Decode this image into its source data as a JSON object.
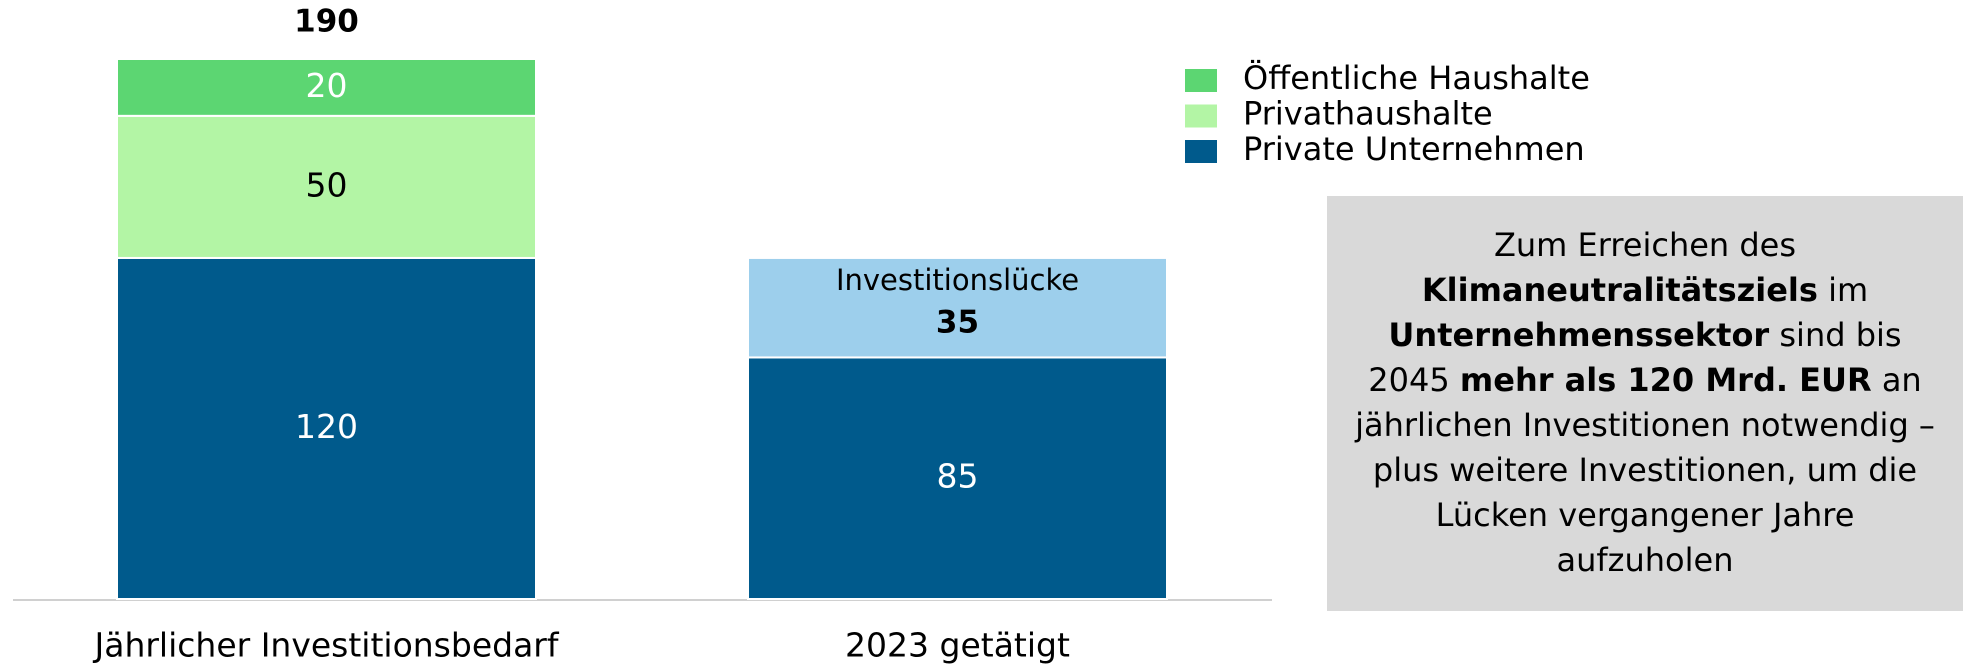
{
  "chart_data": {
    "type": "stacked_bar",
    "categories": [
      "Jährlicher Investitionsbedarf",
      "2023 getätigt"
    ],
    "series": [
      {
        "name": "Private Unternehmen",
        "color": "#005a8c",
        "label_color": "#ffffff",
        "values": [
          120,
          85
        ],
        "legend": true
      },
      {
        "name": "Privathaushalte",
        "color": "#b3f5a5",
        "label_color": "#000000",
        "values": [
          50,
          null
        ],
        "legend": true
      },
      {
        "name": "Öffentliche Haushalte",
        "color": "#5cd672",
        "label_color": "#ffffff",
        "values": [
          20,
          null
        ],
        "legend": true
      },
      {
        "name": "Investitionslücke",
        "color": "#9dcfec",
        "label_color": "#000000",
        "values": [
          null,
          35
        ],
        "legend": false,
        "name_in_bar": true
      }
    ],
    "totals": [
      190,
      null
    ],
    "ylim": [
      0,
      190
    ],
    "annotation": [
      [
        {
          "text": "Zum Erreichen des",
          "bold": false
        }
      ],
      [
        {
          "text": "Klimaneutralitätsziels",
          "bold": true
        },
        {
          "text": " im",
          "bold": false
        }
      ],
      [
        {
          "text": "Unternehmenssektor",
          "bold": true
        },
        {
          "text": " sind bis",
          "bold": false
        }
      ],
      [
        {
          "text": "2045 ",
          "bold": false
        },
        {
          "text": "mehr als 120 Mrd. EUR",
          "bold": true
        },
        {
          "text": " an",
          "bold": false
        }
      ],
      [
        {
          "text": "jährlichen Investitionen notwendig –",
          "bold": false
        }
      ],
      [
        {
          "text": "plus weitere Investitionen, um die",
          "bold": false
        }
      ],
      [
        {
          "text": "Lücken vergangener Jahre",
          "bold": false
        }
      ],
      [
        {
          "text": "aufzuholen",
          "bold": false
        }
      ]
    ]
  }
}
